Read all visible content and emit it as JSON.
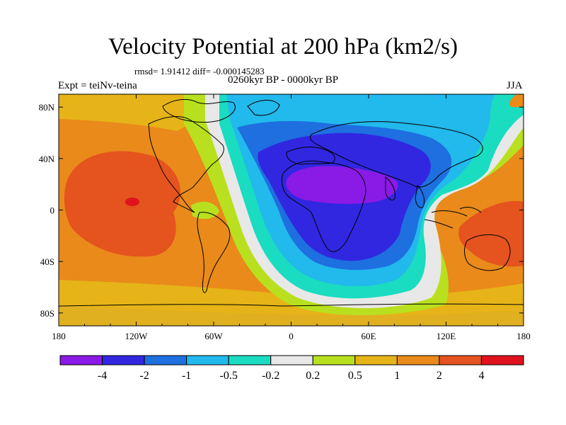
{
  "title": "Velocity Potential at 200 hPa (km2/s)",
  "stats": "rmsd= 1.91412 diff= -0.000145283",
  "left_label": "Expt = teiNv-teina",
  "center_label": "0260kyr BP - 0000kyr BP",
  "right_label": "JJA",
  "axes": {
    "x_ticks": [
      "180",
      "120W",
      "60W",
      "0",
      "60E",
      "120E",
      "180"
    ],
    "y_ticks": [
      "80N",
      "40N",
      "0",
      "40S",
      "80S"
    ]
  },
  "colorbar": {
    "labels": [
      "-4",
      "-2",
      "-1",
      "-0.5",
      "-0.2",
      "0.2",
      "0.5",
      "1",
      "2",
      "4"
    ],
    "colors": [
      "#8a1ae6",
      "#3127e0",
      "#1e6fe0",
      "#22b9ec",
      "#1adcc0",
      "#e8e8e8",
      "#b8e01e",
      "#e6b418",
      "#e98a1a",
      "#e5531e",
      "#e0121e"
    ]
  }
}
